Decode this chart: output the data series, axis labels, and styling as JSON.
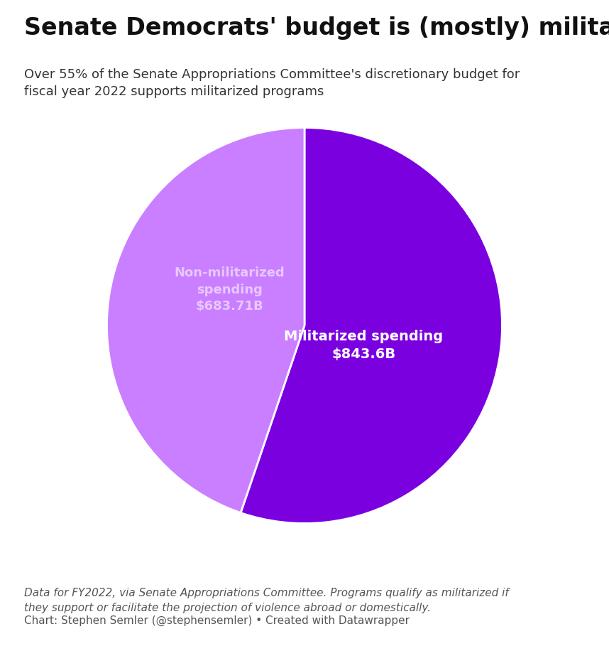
{
  "title": "Senate Democrats' budget is (mostly) militarized",
  "subtitle": "Over 55% of the Senate Appropriations Committee's discretionary budget for\nfiscal year 2022 supports militarized programs",
  "label_militarized": "Militarized spending\n$843.6B",
  "label_non_militarized": "Non-militarized\nspending\n$683.71B",
  "militarized_value": 843.6,
  "non_militarized_value": 683.71,
  "militarized_color": "#7B00E0",
  "non_militarized_color": "#C97FFF",
  "militarized_text_color": "#ffffff",
  "non_militarized_text_color": "#e8c8ff",
  "footnote_italic": "Data for FY2022, via Senate Appropriations Committee. Programs qualify as militarized if\nthey support or facilitate the projection of violence abroad or domestically.",
  "footnote_plain": "Chart: Stephen Semler (@stephensemler) • Created with Datawrapper",
  "background_color": "#ffffff",
  "title_fontsize": 24,
  "subtitle_fontsize": 13,
  "footnote_fontsize": 11
}
